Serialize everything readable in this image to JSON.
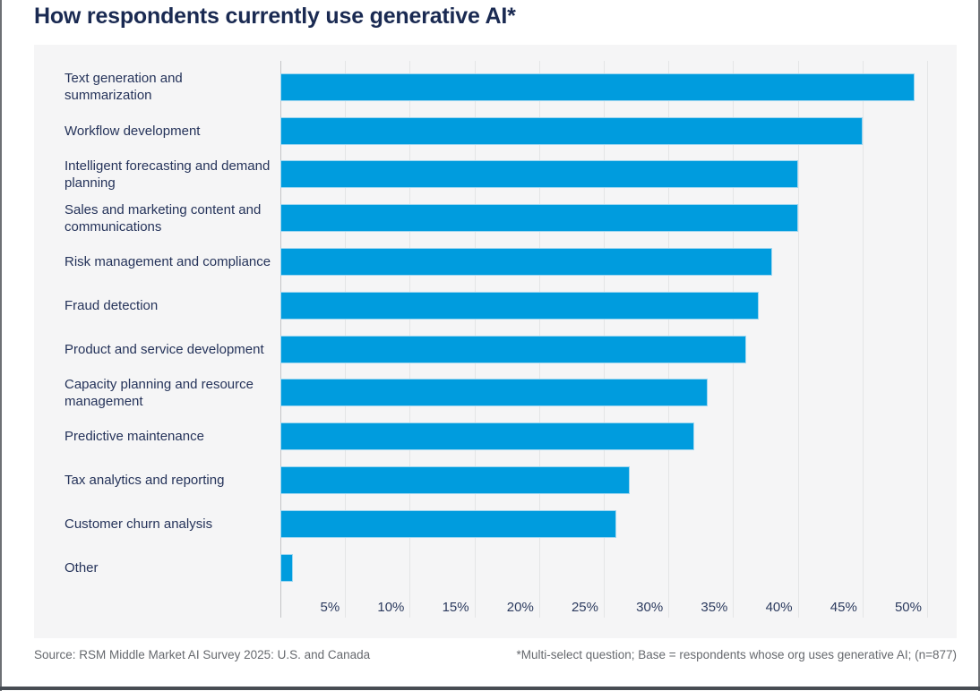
{
  "title": "How respondents currently use generative AI*",
  "footer": {
    "source": "Source: RSM Middle Market AI Survey 2025: U.S. and Canada",
    "note": "*Multi-select question; Base = respondents whose org uses generative AI; (n=877)"
  },
  "colors": {
    "bar": "#009cde",
    "bar_outline": "#9ed6f0",
    "title_text": "#1a2a52",
    "label_text": "#25335a",
    "panel_background": "#f5f5f6",
    "gridline": "#e4e5e6",
    "axis_line": "#c3c4c6",
    "footer_text": "#66696e",
    "bottom_bar": "#474c53"
  },
  "chart_data": {
    "type": "bar",
    "orientation": "horizontal",
    "title": "How respondents currently use generative AI*",
    "categories": [
      "Text generation and summarization",
      "Workflow development",
      "Intelligent forecasting and demand planning",
      "Sales and marketing content and communications",
      "Risk management and compliance",
      "Fraud detection",
      "Product and service development",
      "Capacity planning and resource management",
      "Predictive maintenance",
      "Tax analytics and reporting",
      "Customer churn analysis",
      "Other"
    ],
    "values": [
      49,
      45,
      40,
      40,
      38,
      37,
      36,
      33,
      32,
      27,
      26,
      1
    ],
    "unit": "%",
    "x_axis": {
      "min": 0,
      "max": 50,
      "tick_step": 5,
      "ticks": [
        5,
        10,
        15,
        20,
        25,
        30,
        35,
        40,
        45,
        50
      ],
      "tick_labels": [
        "5%",
        "10%",
        "15%",
        "20%",
        "25%",
        "30%",
        "35%",
        "40%",
        "45%",
        "50%"
      ],
      "gridlines": true
    },
    "legend": null,
    "data_labels": false
  }
}
